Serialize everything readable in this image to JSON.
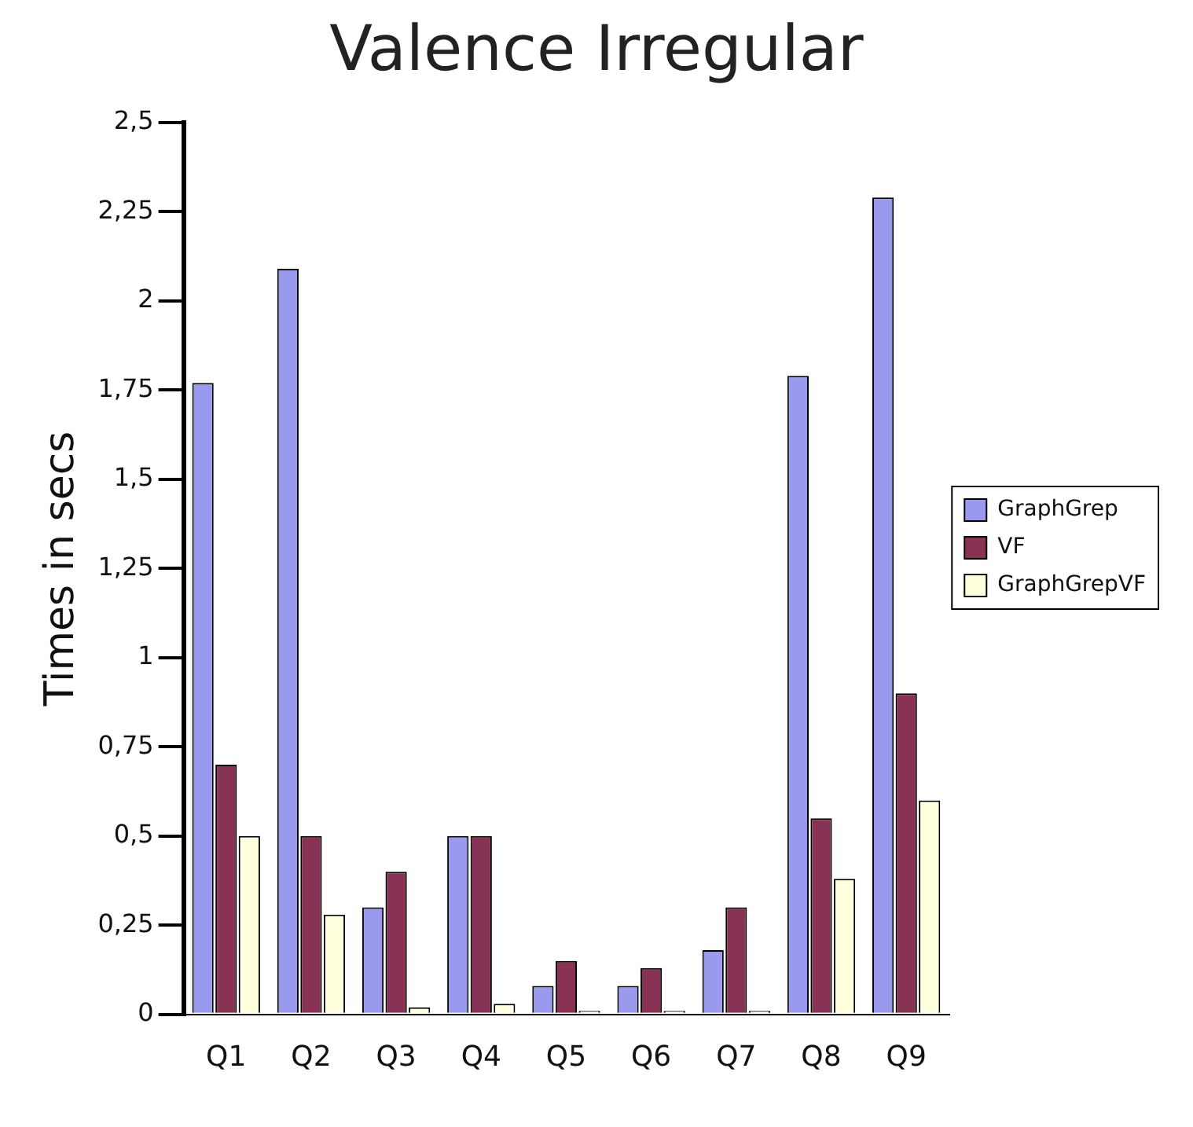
{
  "chart_data": {
    "type": "bar",
    "title": "Valence Irregular",
    "ylabel": "Times in secs",
    "categories": [
      "Q1",
      "Q2",
      "Q3",
      "Q4",
      "Q5",
      "Q6",
      "Q7",
      "Q8",
      "Q9"
    ],
    "series": [
      {
        "name": "GraphGrep",
        "color": "#9999ee",
        "values": [
          1.77,
          2.09,
          0.3,
          0.5,
          0.08,
          0.08,
          0.18,
          1.79,
          2.29
        ]
      },
      {
        "name": "VF",
        "color": "#883355",
        "values": [
          0.7,
          0.5,
          0.4,
          0.5,
          0.15,
          0.13,
          0.3,
          0.55,
          0.9
        ]
      },
      {
        "name": "GraphGrepVF",
        "color": "#ffffdd",
        "values": [
          0.5,
          0.28,
          0.02,
          0.03,
          0.01,
          0.01,
          0.01,
          0.38,
          0.6
        ]
      }
    ],
    "ylim": [
      0,
      2.5
    ],
    "yticks": [
      0,
      {
        "value": 0.25,
        "label": "0,25"
      },
      {
        "value": 0.5,
        "label": "0,5"
      },
      {
        "value": 0.75,
        "label": "0,75"
      },
      1,
      {
        "value": 1.25,
        "label": "1,25"
      },
      {
        "value": 1.5,
        "label": "1,5"
      },
      {
        "value": 1.75,
        "label": "1,75"
      },
      2,
      {
        "value": 2.25,
        "label": "2,25"
      },
      {
        "value": 2.5,
        "label": "2,5"
      }
    ],
    "grid": false,
    "legend": "right"
  }
}
